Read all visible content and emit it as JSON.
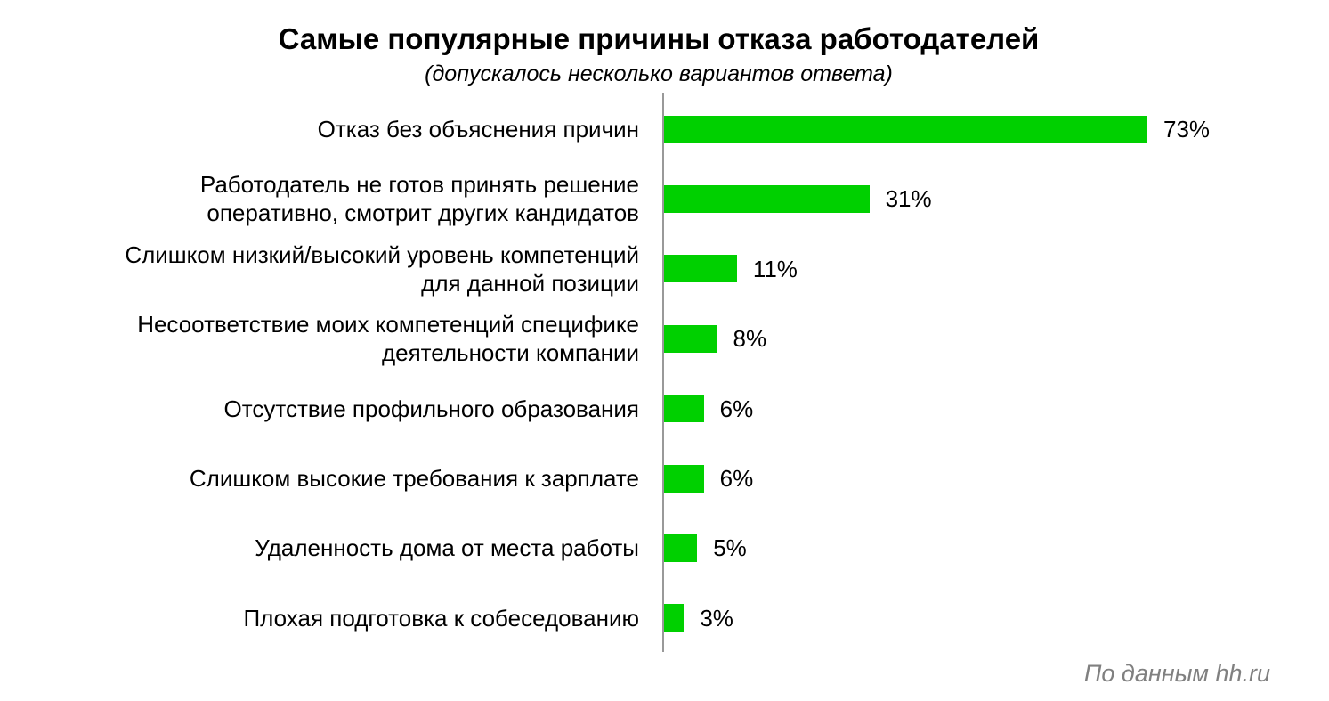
{
  "chart_data": {
    "type": "bar",
    "orientation": "horizontal",
    "title": "Самые популярные причины отказа работодателей",
    "subtitle": "(допускалось несколько вариантов ответа)",
    "categories": [
      "Отказ без объяснения причин",
      "Работодатель не готов принять решение\nоперативно, смотрит других кандидатов",
      "Слишком низкий/высокий уровень компетенций\nдля данной позиции",
      "Несоответствие моих компетенций специфике\nдеятельности компании",
      "Отсутствие профильного образования",
      "Слишком высокие требования к зарплате",
      "Удаленность дома от места работы",
      "Плохая подготовка к собеседованию"
    ],
    "values": [
      73,
      31,
      11,
      8,
      6,
      6,
      5,
      3
    ],
    "value_labels": [
      "73%",
      "31%",
      "11%",
      "8%",
      "6%",
      "6%",
      "5%",
      "3%"
    ],
    "unit": "%",
    "xlim": [
      0,
      73
    ],
    "bar_color": "#00d000",
    "grid": false,
    "legend": "none"
  },
  "source": "По данным hh.ru"
}
